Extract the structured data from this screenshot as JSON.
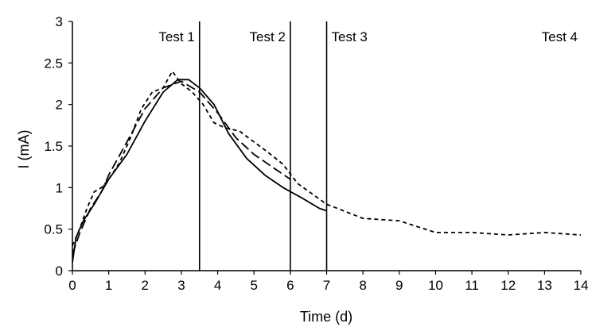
{
  "chart_data": {
    "type": "line",
    "title": "",
    "xlabel": "Time (d)",
    "ylabel": "I (mA)",
    "xlim": [
      0,
      14
    ],
    "ylim": [
      0,
      3
    ],
    "x_ticks": [
      0,
      1,
      2,
      3,
      4,
      5,
      6,
      7,
      8,
      9,
      10,
      11,
      12,
      13,
      14
    ],
    "x_tick_labels": [
      "0",
      "1",
      "2",
      "3",
      "4",
      "5",
      "6",
      "7",
      "8",
      "9",
      "10",
      "11",
      "12",
      "13",
      "14"
    ],
    "y_ticks": [
      0,
      0.5,
      1,
      1.5,
      2,
      2.5,
      3
    ],
    "y_tick_labels": [
      "0",
      "0.5",
      "1",
      "1.5",
      "2",
      "2.5",
      "3"
    ],
    "grid": false,
    "legend": "none",
    "vertical_lines": [
      {
        "x": 3.5,
        "label": "Test 1"
      },
      {
        "x": 6,
        "label": "Test 2"
      },
      {
        "x": 7,
        "label": "Test 3"
      }
    ],
    "extra_labels": [
      {
        "label": "Test 4"
      }
    ],
    "series": [
      {
        "style": "solid",
        "color": "#000000",
        "x": [
          0,
          0.1,
          0.3,
          0.6,
          1.0,
          1.5,
          2.0,
          2.5,
          2.9,
          3.2,
          3.5,
          3.9,
          4.3,
          4.8,
          5.3,
          5.8,
          6.3,
          6.8,
          7.0
        ],
        "y": [
          0.1,
          0.4,
          0.6,
          0.8,
          1.1,
          1.4,
          1.8,
          2.15,
          2.3,
          2.3,
          2.2,
          2.0,
          1.65,
          1.35,
          1.15,
          1.0,
          0.88,
          0.75,
          0.72
        ]
      },
      {
        "style": "dashed",
        "color": "#000000",
        "x": [
          0,
          0.2,
          0.5,
          0.8,
          1.0,
          1.5,
          2.0,
          2.5,
          3.0,
          3.5,
          4.0,
          4.5,
          5.0,
          5.5,
          6.0
        ],
        "y": [
          0.2,
          0.45,
          0.75,
          0.95,
          1.15,
          1.55,
          1.95,
          2.2,
          2.28,
          2.15,
          1.9,
          1.6,
          1.4,
          1.25,
          1.1
        ]
      },
      {
        "style": "short-dash",
        "color": "#000000",
        "x": [
          0,
          0.2,
          0.4,
          0.6,
          0.8,
          1.0,
          1.3,
          1.6,
          1.9,
          2.2,
          2.5,
          2.75,
          3.0,
          3.3,
          3.6,
          3.9,
          4.2,
          4.6,
          5.0,
          5.4,
          5.8,
          6.2,
          7.0,
          8.0,
          9.0,
          10.0,
          11.0,
          12.0,
          13.0,
          14.0
        ],
        "y": [
          0.3,
          0.5,
          0.75,
          0.95,
          1.0,
          1.1,
          1.3,
          1.6,
          1.95,
          2.15,
          2.2,
          2.4,
          2.25,
          2.15,
          2.0,
          1.78,
          1.72,
          1.68,
          1.55,
          1.42,
          1.28,
          1.05,
          0.8,
          0.63,
          0.6,
          0.46,
          0.46,
          0.43,
          0.46,
          0.43
        ]
      }
    ]
  }
}
